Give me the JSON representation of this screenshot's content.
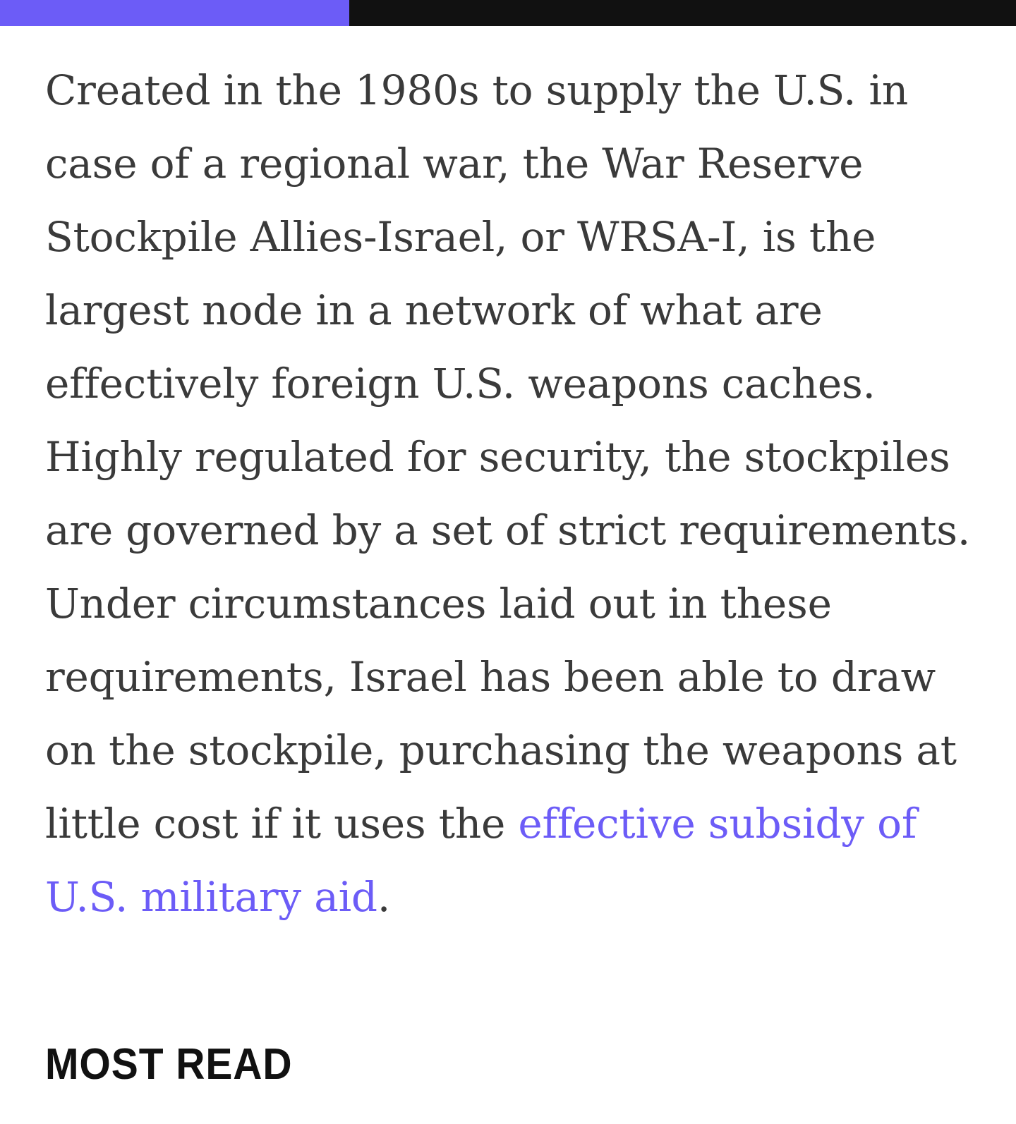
{
  "reading_progress": {
    "fraction": 0.344,
    "fill_color": "#6c5cf7",
    "track_color": "#111111"
  },
  "article": {
    "paragraph_text": "Created in the 1980s to supply the U.S. in case of a regional war, the War Reserve Stockpile Allies-Israel, or WRSA-I, is the largest node in a network of what are effectively foreign U.S. weapons caches. Highly regulated for security, the stockpiles are governed by a set of strict requirements. Under circumstances laid out in these requirements, Israel has been able to draw on the stockpile, purchasing the weapons at little cost if it uses the ",
    "link_text": "effective subsidy of U.S. military aid",
    "trailing_text": ".",
    "link_color": "#6c5cf7"
  },
  "most_read": {
    "heading": "MOST READ"
  }
}
